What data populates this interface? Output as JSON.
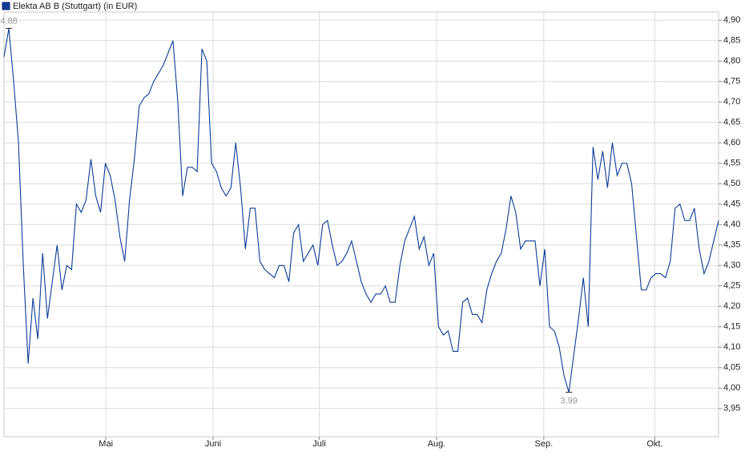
{
  "chart_data": {
    "type": "line",
    "series": [
      {
        "name": "Elekta AB B (Stuttgart) (in EUR)",
        "color": "#0d3c96",
        "values": [
          4.81,
          4.88,
          4.75,
          4.6,
          4.3,
          4.06,
          4.22,
          4.12,
          4.33,
          4.17,
          4.26,
          4.35,
          4.24,
          4.3,
          4.29,
          4.45,
          4.43,
          4.46,
          4.56,
          4.47,
          4.43,
          4.55,
          4.52,
          4.46,
          4.37,
          4.31,
          4.46,
          4.56,
          4.69,
          4.71,
          4.72,
          4.75,
          4.77,
          4.79,
          4.82,
          4.85,
          4.7,
          4.47,
          4.54,
          4.54,
          4.53,
          4.83,
          4.8,
          4.55,
          4.53,
          4.49,
          4.47,
          4.49,
          4.6,
          4.49,
          4.34,
          4.44,
          4.44,
          4.31,
          4.29,
          4.28,
          4.27,
          4.3,
          4.3,
          4.26,
          4.38,
          4.4,
          4.31,
          4.33,
          4.35,
          4.3,
          4.4,
          4.41,
          4.35,
          4.3,
          4.31,
          4.33,
          4.36,
          4.31,
          4.26,
          4.23,
          4.21,
          4.23,
          4.23,
          4.25,
          4.21,
          4.21,
          4.3,
          4.36,
          4.39,
          4.42,
          4.34,
          4.37,
          4.3,
          4.33,
          4.15,
          4.13,
          4.14,
          4.09,
          4.09,
          4.21,
          4.22,
          4.18,
          4.18,
          4.16,
          4.24,
          4.28,
          4.31,
          4.33,
          4.39,
          4.47,
          4.43,
          4.34,
          4.36,
          4.36,
          4.36,
          4.25,
          4.34,
          4.15,
          4.14,
          4.1,
          4.03,
          3.99,
          4.08,
          4.17,
          4.27,
          4.15,
          4.59,
          4.51,
          4.58,
          4.49,
          4.6,
          4.52,
          4.55,
          4.55,
          4.5,
          4.37,
          4.24,
          4.24,
          4.27,
          4.28,
          4.28,
          4.27,
          4.31,
          4.44,
          4.45,
          4.41,
          4.41,
          4.44,
          4.34,
          4.28,
          4.31,
          4.36,
          4.41
        ]
      }
    ],
    "xlim": [
      0,
      148
    ],
    "xticks": [
      {
        "value": 21.1,
        "label": "Mai"
      },
      {
        "value": 43.3,
        "label": "Juni"
      },
      {
        "value": 65.3,
        "label": "Juli"
      },
      {
        "value": 89.6,
        "label": "Aug."
      },
      {
        "value": 111.8,
        "label": "Sep."
      },
      {
        "value": 134.8,
        "label": "Okt."
      }
    ],
    "ylim": [
      3.881,
      4.92
    ],
    "yticks": [
      {
        "value": 3.95,
        "label": "3,95"
      },
      {
        "value": 4.0,
        "label": "4,00"
      },
      {
        "value": 4.05,
        "label": "4,05"
      },
      {
        "value": 4.1,
        "label": "4,10"
      },
      {
        "value": 4.15,
        "label": "4,15"
      },
      {
        "value": 4.2,
        "label": "4,20"
      },
      {
        "value": 4.25,
        "label": "4,25"
      },
      {
        "value": 4.3,
        "label": "4,30"
      },
      {
        "value": 4.35,
        "label": "4,35"
      },
      {
        "value": 4.4,
        "label": "4,40"
      },
      {
        "value": 4.45,
        "label": "4,45"
      },
      {
        "value": 4.5,
        "label": "4,50"
      },
      {
        "value": 4.55,
        "label": "4,55"
      },
      {
        "value": 4.6,
        "label": "4,60"
      },
      {
        "value": 4.65,
        "label": "4,65"
      },
      {
        "value": 4.7,
        "label": "4,70"
      },
      {
        "value": 4.75,
        "label": "4,75"
      },
      {
        "value": 4.8,
        "label": "4,80"
      },
      {
        "value": 4.85,
        "label": "4,85"
      },
      {
        "value": 4.9,
        "label": "4,90"
      }
    ],
    "annotations": [
      {
        "index": 1,
        "value": 4.88,
        "label": "4,88",
        "position": "above"
      },
      {
        "index": 117,
        "value": 3.99,
        "label": "3,99",
        "position": "below"
      }
    ],
    "grid": true
  }
}
